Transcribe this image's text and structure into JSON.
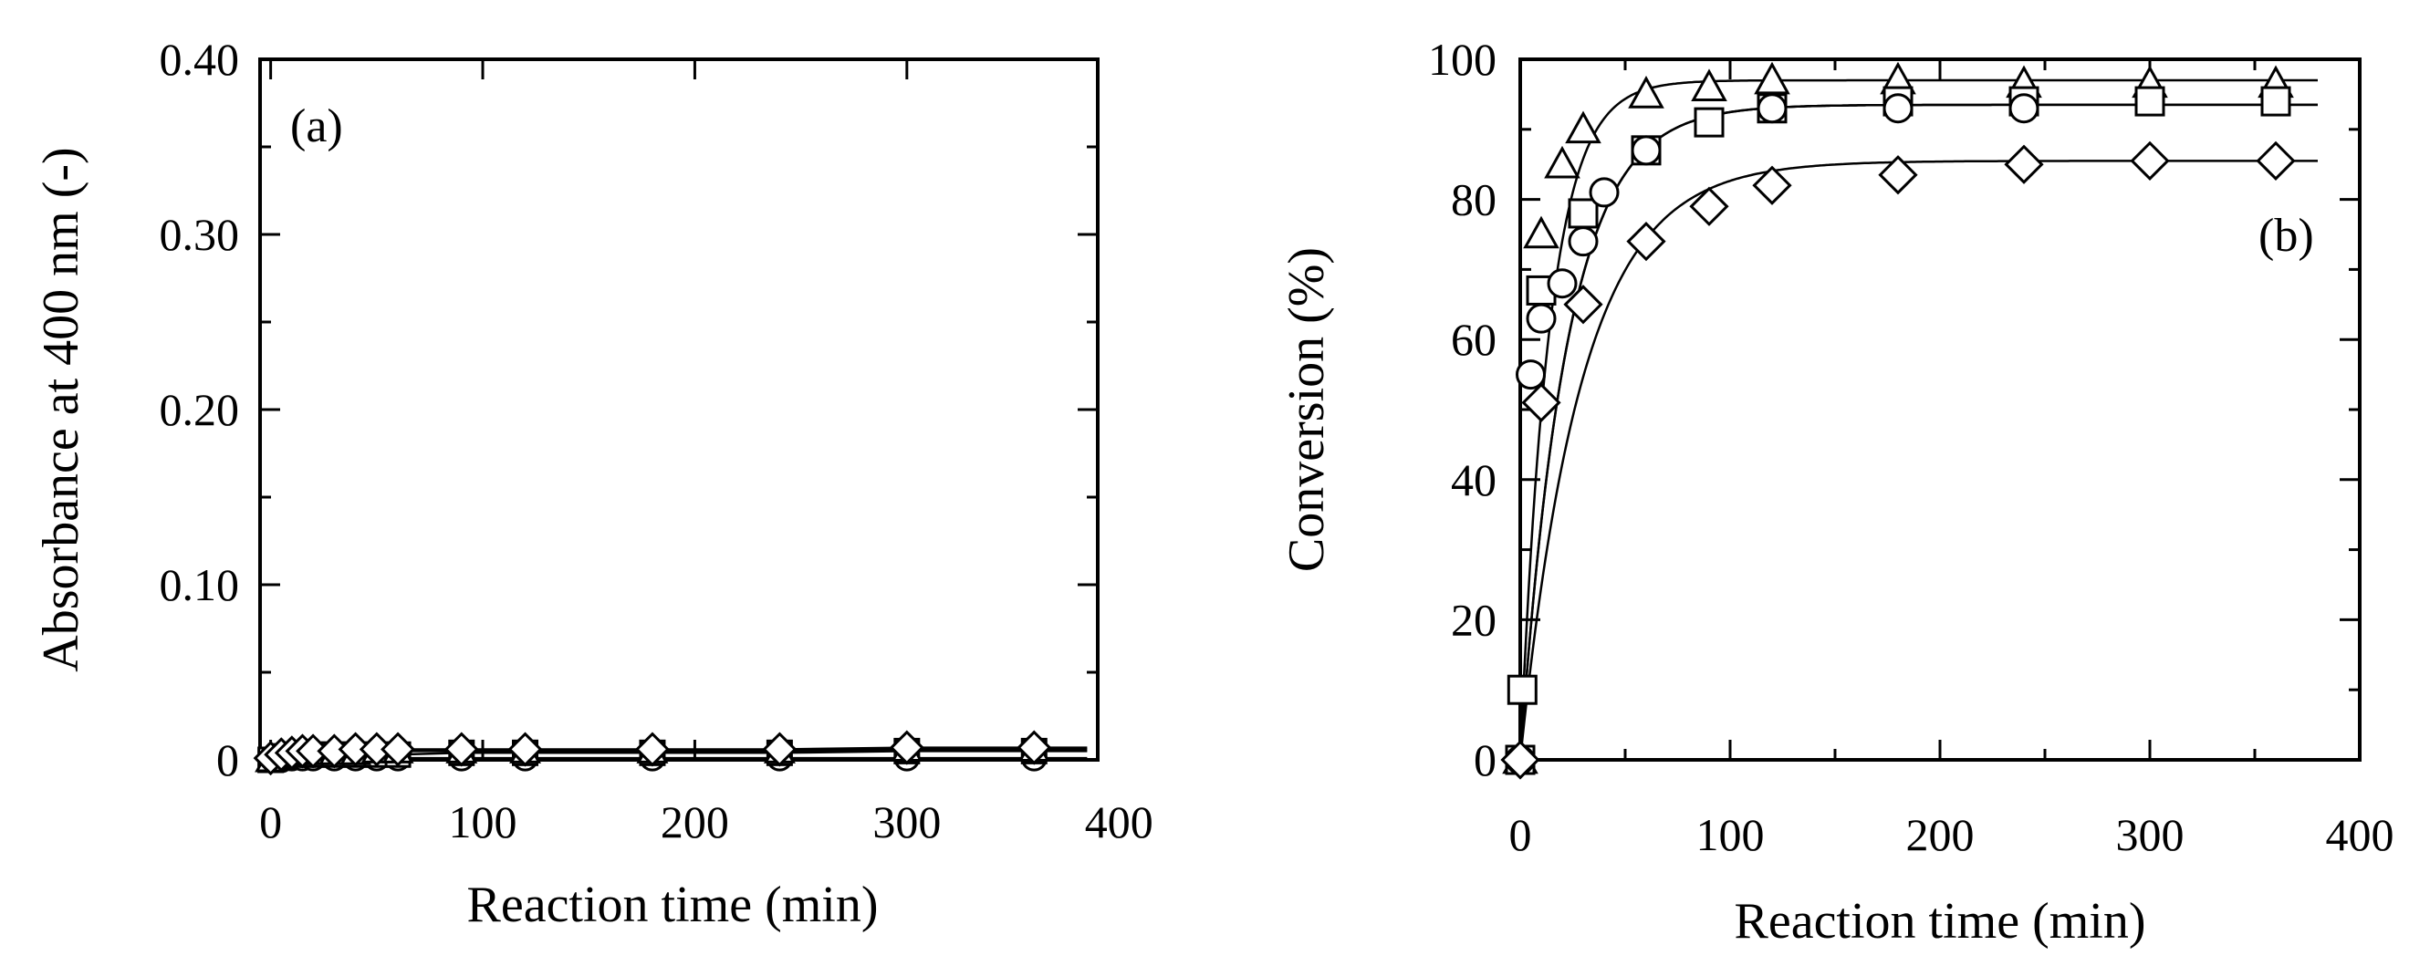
{
  "chart_data": [
    {
      "type": "scatter",
      "panel_label": "(a)",
      "xlabel": "Reaction time (min)",
      "ylabel": "Absorbance at 400 nm (-)",
      "xlim": [
        -5,
        390
      ],
      "ylim": [
        0,
        0.4
      ],
      "xticks": [
        0,
        100,
        200,
        300,
        400
      ],
      "xtick_labels": [
        "0",
        "100",
        "200",
        "300",
        "400"
      ],
      "yticks": [
        0,
        0.1,
        0.2,
        0.3,
        0.4
      ],
      "ytick_labels": [
        "0",
        "0.10",
        "0.20",
        "0.30",
        "0.40"
      ],
      "series": [
        {
          "name": "circle",
          "marker": "circle",
          "x": [
            0,
            5,
            10,
            15,
            20,
            30,
            40,
            50,
            60,
            90,
            120,
            180,
            240,
            300,
            360
          ],
          "y": [
            0,
            0,
            0.001,
            0.001,
            0.001,
            0.001,
            0.001,
            0.001,
            0.001,
            0.001,
            0.001,
            0.001,
            0.001,
            0.001,
            0.001
          ]
        },
        {
          "name": "square",
          "marker": "square",
          "x": [
            0,
            5,
            10,
            15,
            20,
            30,
            40,
            50,
            60,
            90,
            120,
            180,
            240,
            300,
            360
          ],
          "y": [
            0,
            0.002,
            0.003,
            0.003,
            0.003,
            0.003,
            0.003,
            0.003,
            0.003,
            0.004,
            0.004,
            0.004,
            0.004,
            0.005,
            0.005
          ]
        },
        {
          "name": "triangle",
          "marker": "triangle",
          "x": [
            0,
            5,
            10,
            15,
            20,
            30,
            40,
            50,
            60,
            90,
            120,
            180,
            240,
            300,
            360
          ],
          "y": [
            0,
            0.002,
            0.003,
            0.004,
            0.004,
            0.004,
            0.004,
            0.005,
            0.005,
            0.005,
            0.005,
            0.005,
            0.005,
            0.006,
            0.006
          ]
        },
        {
          "name": "diamond",
          "marker": "diamond",
          "x": [
            0,
            5,
            10,
            15,
            20,
            30,
            40,
            50,
            60,
            90,
            120,
            180,
            240,
            300,
            360
          ],
          "y": [
            0.001,
            0.003,
            0.004,
            0.005,
            0.005,
            0.005,
            0.006,
            0.006,
            0.006,
            0.006,
            0.006,
            0.006,
            0.006,
            0.007,
            0.007
          ]
        }
      ]
    },
    {
      "type": "scatter",
      "panel_label": "(b)",
      "xlabel": "Reaction time (min)",
      "ylabel": "Conversion (%)",
      "xlim": [
        0,
        400
      ],
      "ylim": [
        0,
        100
      ],
      "xticks": [
        0,
        100,
        200,
        300,
        400
      ],
      "xtick_labels": [
        "0",
        "100",
        "200",
        "300",
        "400"
      ],
      "yticks": [
        0,
        20,
        40,
        60,
        80,
        100
      ],
      "ytick_labels": [
        "0",
        "20",
        "40",
        "60",
        "80",
        "100"
      ],
      "series": [
        {
          "name": "triangle",
          "marker": "triangle",
          "x": [
            0,
            10,
            20,
            30,
            60,
            90,
            120,
            180,
            240,
            300,
            360
          ],
          "y": [
            0,
            75,
            85,
            90,
            95,
            96,
            97,
            97,
            96.5,
            96.5,
            96.5
          ],
          "fit_plateau": 97,
          "fit_rate": 0.072
        },
        {
          "name": "square",
          "marker": "square",
          "x": [
            0,
            1,
            10,
            30,
            60,
            90,
            120,
            180,
            240,
            300,
            360
          ],
          "y": [
            0,
            10,
            67,
            78,
            87,
            91,
            93,
            94,
            94,
            94,
            94
          ],
          "fit_plateau": 93.5,
          "fit_rate": 0.045
        },
        {
          "name": "circle",
          "marker": "circle",
          "x": [
            0,
            5,
            10,
            20,
            30,
            40,
            60,
            120,
            180,
            240
          ],
          "y": [
            0,
            55,
            63,
            68,
            74,
            81,
            87,
            93,
            93,
            93
          ],
          "fit_plateau": 93.5,
          "fit_rate": 0.045
        },
        {
          "name": "diamond",
          "marker": "diamond",
          "x": [
            0,
            10,
            30,
            60,
            90,
            120,
            180,
            240,
            300,
            360
          ],
          "y": [
            0,
            51,
            65,
            74,
            79,
            82,
            83.5,
            85,
            85.5,
            85.5
          ],
          "fit_plateau": 85.5,
          "fit_rate": 0.034
        }
      ]
    }
  ]
}
